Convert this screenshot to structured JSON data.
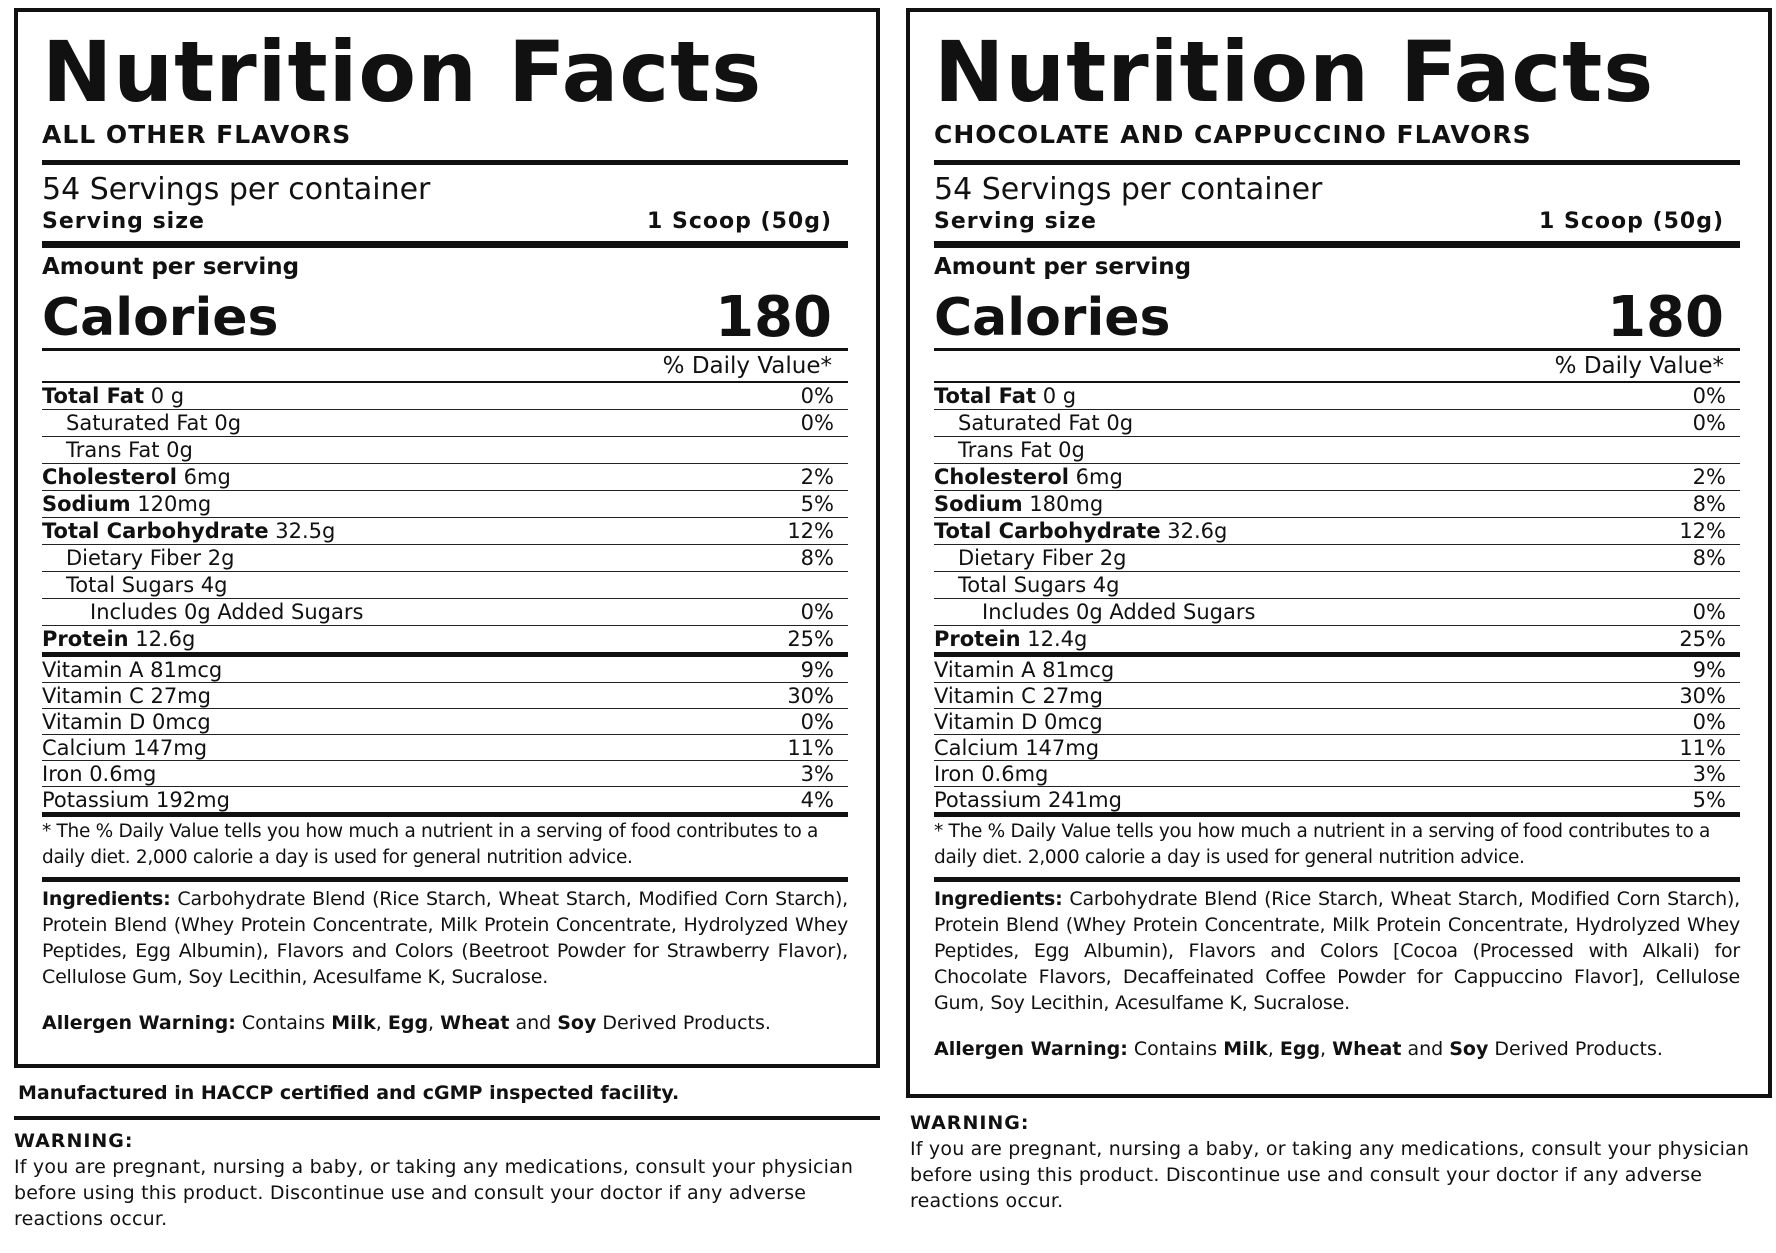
{
  "left": {
    "title": "Nutrition Facts",
    "flavor": "ALL OTHER FLAVORS",
    "servings": "54 Servings per container",
    "serving_size_label": "Serving size",
    "serving_size_value": "1 Scoop (50g)",
    "amount_per_serving": "Amount per serving",
    "calories_label": "Calories",
    "calories_value": "180",
    "dv_header": "% Daily Value*",
    "nutrients": [
      {
        "name": "Total Fat",
        "amount": " 0 g",
        "dv": "0%"
      },
      {
        "name": "Saturated Fat 0g",
        "amount": "",
        "dv": "0%"
      },
      {
        "name": "Trans Fat 0g",
        "amount": "",
        "dv": ""
      },
      {
        "name": "Cholesterol",
        "amount": " 6mg",
        "dv": "2%"
      },
      {
        "name": "Sodium",
        "amount": " 120mg",
        "dv": "5%"
      },
      {
        "name": "Total Carbohydrate",
        "amount": " 32.5g",
        "dv": "12%"
      },
      {
        "name": "Dietary Fiber 2g",
        "amount": "",
        "dv": "8%"
      },
      {
        "name": "Total Sugars 4g",
        "amount": "",
        "dv": ""
      },
      {
        "name": "Includes 0g Added Sugars",
        "amount": "",
        "dv": "0%"
      },
      {
        "name": "Protein",
        "amount": " 12.6g",
        "dv": "25%"
      }
    ],
    "vitamins": [
      {
        "name": "Vitamin A 81mcg",
        "dv": "9%"
      },
      {
        "name": "Vitamin C 27mg",
        "dv": "30%"
      },
      {
        "name": "Vitamin D 0mcg",
        "dv": "0%"
      },
      {
        "name": "Calcium 147mg",
        "dv": "11%"
      },
      {
        "name": "Iron 0.6mg",
        "dv": "3%"
      },
      {
        "name": "Potassium 192mg",
        "dv": "4%"
      }
    ],
    "footnote": "* The % Daily Value tells you how much a nutrient in a serving of food contributes to a daily diet. 2,000 calorie a day is used for general nutrition advice.",
    "ingredients_label": "Ingredients:",
    "ingredients_text": " Carbohydrate Blend (Rice Starch, Wheat Starch, Modified Corn Starch), Protein Blend (Whey Protein Concentrate, Milk Protein Concentrate, Hydrolyzed Whey Peptides, Egg Albumin), Flavors and Colors (Beetroot Powder for Strawberry Flavor), Cellulose Gum, Soy Lecithin, Acesulfame K, Sucralose.",
    "allergen": {
      "label": "Allergen Warning:",
      "t1": " Contains ",
      "milk": "Milk",
      "t2": ", ",
      "egg": "Egg",
      "t3": ", ",
      "wheat": "Wheat",
      "t4": " and ",
      "soy": "Soy",
      "t5": " Derived Products."
    },
    "manufactured": "Manufactured in HACCP certified and cGMP inspected facility.",
    "warning_title": "WARNING:",
    "warning_text": "If you are pregnant, nursing a baby, or taking any medications, consult your physician before using this product. Discontinue use and consult your doctor if any adverse reactions occur."
  },
  "right": {
    "title": "Nutrition Facts",
    "flavor": "CHOCOLATE AND CAPPUCCINO FLAVORS",
    "servings": "54 Servings per container",
    "serving_size_label": "Serving size",
    "serving_size_value": "1 Scoop (50g)",
    "amount_per_serving": "Amount per serving",
    "calories_label": "Calories",
    "calories_value": "180",
    "dv_header": "% Daily Value*",
    "nutrients": [
      {
        "name": "Total Fat",
        "amount": " 0 g",
        "dv": "0%"
      },
      {
        "name": "Saturated Fat 0g",
        "amount": "",
        "dv": "0%"
      },
      {
        "name": "Trans Fat 0g",
        "amount": "",
        "dv": ""
      },
      {
        "name": "Cholesterol",
        "amount": " 6mg",
        "dv": "2%"
      },
      {
        "name": "Sodium",
        "amount": " 180mg",
        "dv": "8%"
      },
      {
        "name": "Total Carbohydrate",
        "amount": " 32.6g",
        "dv": "12%"
      },
      {
        "name": "Dietary Fiber 2g",
        "amount": "",
        "dv": "8%"
      },
      {
        "name": "Total Sugars 4g",
        "amount": "",
        "dv": ""
      },
      {
        "name": "Includes 0g Added Sugars",
        "amount": "",
        "dv": "0%"
      },
      {
        "name": "Protein",
        "amount": " 12.4g",
        "dv": "25%"
      }
    ],
    "vitamins": [
      {
        "name": "Vitamin A 81mcg",
        "dv": "9%"
      },
      {
        "name": "Vitamin C 27mg",
        "dv": "30%"
      },
      {
        "name": "Vitamin D 0mcg",
        "dv": "0%"
      },
      {
        "name": "Calcium 147mg",
        "dv": "11%"
      },
      {
        "name": "Iron 0.6mg",
        "dv": "3%"
      },
      {
        "name": "Potassium 241mg",
        "dv": "5%"
      }
    ],
    "footnote": "* The % Daily Value tells you how much a nutrient in a serving of food contributes to a daily diet. 2,000 calorie a day is used for general nutrition advice.",
    "ingredients_label": "Ingredients:",
    "ingredients_text": " Carbohydrate Blend (Rice Starch, Wheat Starch, Modified Corn Starch), Protein Blend (Whey Protein Concentrate, Milk Protein Concentrate, Hydrolyzed Whey Peptides, Egg Albumin), Flavors and Colors [Cocoa (Processed with Alkali) for Chocolate Flavors, Decaffeinated Coffee Powder for Cappuccino Flavor], Cellulose Gum, Soy Lecithin, Acesulfame K, Sucralose.",
    "allergen": {
      "label": "Allergen Warning:",
      "t1": " Contains ",
      "milk": "Milk",
      "t2": ", ",
      "egg": "Egg",
      "t3": ", ",
      "wheat": "Wheat",
      "t4": " and ",
      "soy": "Soy",
      "t5": " Derived Products."
    },
    "warning_title": "WARNING:",
    "warning_text": "If you are pregnant, nursing a baby, or taking any medications, consult your physician before using this product. Discontinue use and consult your doctor if any adverse reactions occur."
  }
}
